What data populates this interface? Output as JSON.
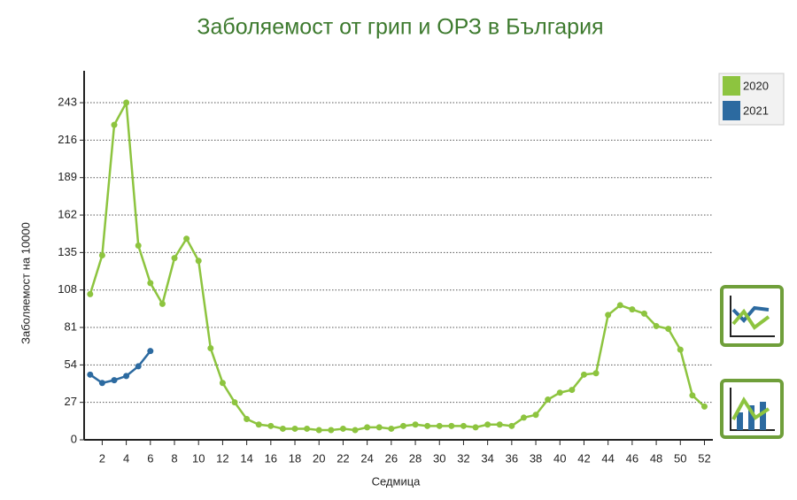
{
  "chart_data": {
    "type": "line",
    "title": "Заболяемост от грип и ОРЗ в България",
    "x_label": "Седмица",
    "y_label": "Заболяемост на 10000",
    "x": [
      1,
      2,
      3,
      4,
      5,
      6,
      7,
      8,
      9,
      10,
      11,
      12,
      13,
      14,
      15,
      16,
      17,
      18,
      19,
      20,
      21,
      22,
      23,
      24,
      25,
      26,
      27,
      28,
      29,
      30,
      31,
      32,
      33,
      34,
      35,
      36,
      37,
      38,
      39,
      40,
      41,
      42,
      43,
      44,
      45,
      46,
      47,
      48,
      49,
      50,
      51,
      52
    ],
    "series": [
      {
        "name": "2020",
        "color": "#8dc43f",
        "values": [
          105,
          133,
          227,
          243,
          140,
          113,
          98,
          131,
          145,
          129,
          66,
          41,
          27,
          15,
          11,
          10,
          8,
          8,
          8,
          7,
          7,
          8,
          7,
          9,
          9,
          8,
          10,
          11,
          10,
          10,
          10,
          10,
          9,
          11,
          11,
          10,
          16,
          18,
          29,
          34,
          36,
          47,
          48,
          90,
          97,
          94,
          91,
          82,
          80,
          65,
          32,
          24
        ]
      },
      {
        "name": "2021",
        "color": "#2c6aa0",
        "values": [
          47,
          41,
          43,
          46,
          53,
          64,
          null,
          null,
          null,
          null,
          null,
          null,
          null,
          null,
          null,
          null,
          null,
          null,
          null,
          null,
          null,
          null,
          null,
          null,
          null,
          null,
          null,
          null,
          null,
          null,
          null,
          null,
          null,
          null,
          null,
          null,
          null,
          null,
          null,
          null,
          null,
          null,
          null,
          null,
          null,
          null,
          null,
          null,
          null,
          null,
          null,
          null
        ]
      }
    ],
    "xlim": [
      0.5,
      52.7
    ],
    "xticks": [
      2,
      4,
      6,
      8,
      10,
      12,
      14,
      16,
      18,
      20,
      22,
      24,
      26,
      28,
      30,
      32,
      34,
      36,
      38,
      40,
      42,
      44,
      46,
      48,
      50,
      52
    ],
    "ylim": [
      0,
      266
    ],
    "yticks": [
      0,
      27,
      54,
      81,
      108,
      135,
      162,
      189,
      216,
      243
    ],
    "grid": true,
    "legend": "top-right"
  }
}
